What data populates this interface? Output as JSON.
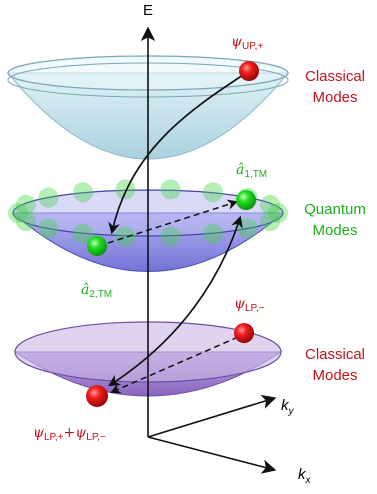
{
  "axes": {
    "energy": "E",
    "ky": {
      "base": "k",
      "sub": "y"
    },
    "kx": {
      "base": "k",
      "sub": "x"
    }
  },
  "bowls": {
    "upper": {
      "state_label": {
        "symbol": "ψ",
        "sub": "UP,+"
      },
      "modes_label": [
        "Classical",
        "Modes"
      ],
      "label_color": "#c0141c"
    },
    "middle": {
      "state_label_1": {
        "symbol": "â",
        "sub": "1,TM"
      },
      "state_label_2": {
        "symbol": "â",
        "sub": "2,TM"
      },
      "modes_label": [
        "Quantum",
        "Modes"
      ],
      "label_color": "#1fae1f"
    },
    "lower": {
      "state_label": {
        "symbol": "ψ",
        "sub": "LP,−"
      },
      "sum_label": {
        "symbol1": "ψ",
        "sub1": "LP,+",
        "plus": "+",
        "symbol2": "ψ",
        "sub2": "LP,−"
      },
      "modes_label": [
        "Classical",
        "Modes"
      ],
      "label_color": "#c0141c"
    }
  },
  "colors": {
    "red_particle": "#e01414",
    "green_particle": "#16d416",
    "upper_bowl": "#bfe3ee",
    "middle_bowl": "#7f7fe8",
    "lower_bowl": "#9a78cf"
  }
}
